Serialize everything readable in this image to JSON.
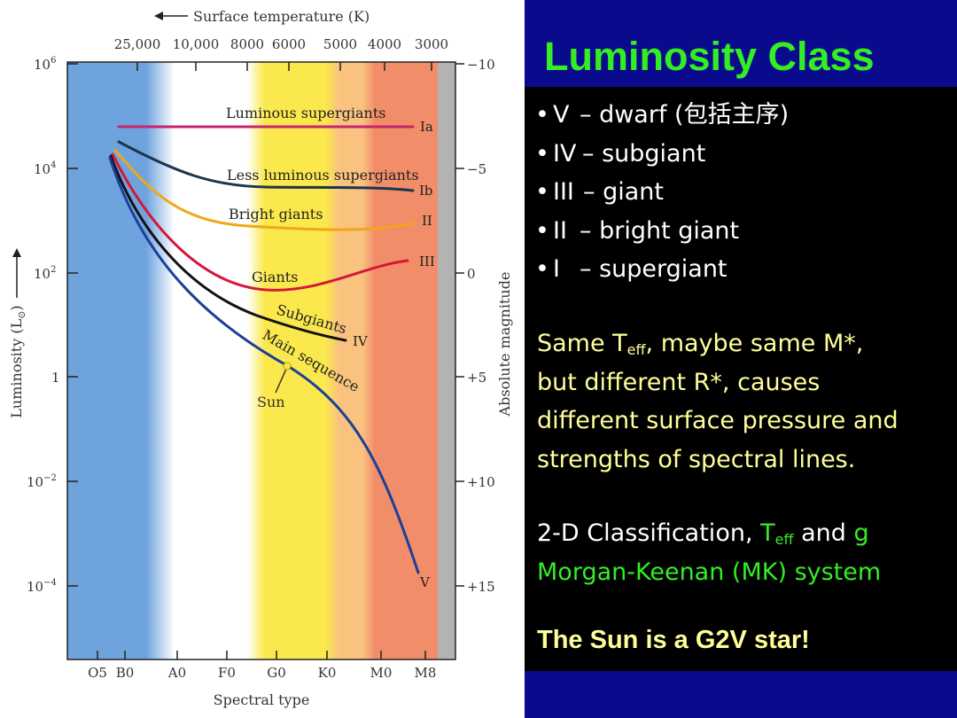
{
  "diagram": {
    "top_axis_label": "Surface temperature (K)",
    "temperature_ticks": [
      "25,000",
      "10,000",
      "8000",
      "6000",
      "5000",
      "4000",
      "3000"
    ],
    "left_axis_label": "Luminosity (L",
    "left_axis_sub": "⊙",
    "left_axis_close": ")",
    "right_axis_label": "Absolute magnitude",
    "bottom_axis_label": "Spectral type",
    "luminosity_ticks": [
      {
        "base": "10",
        "exp": "6"
      },
      {
        "base": "10",
        "exp": "4"
      },
      {
        "base": "10",
        "exp": "2"
      },
      {
        "base": "1",
        "exp": ""
      },
      {
        "base": "10",
        "exp": "−2"
      },
      {
        "base": "10",
        "exp": "−4"
      }
    ],
    "magnitude_ticks": [
      "−10",
      "−5",
      "0",
      "+5",
      "+10",
      "+15"
    ],
    "spectral_ticks": [
      "O5",
      "B0",
      "A0",
      "F0",
      "G0",
      "K0",
      "M0",
      "M8"
    ],
    "branches": [
      {
        "label": "Luminous supergiants",
        "class": "Ia",
        "color": "#c8246e"
      },
      {
        "label": "Less luminous supergiants",
        "class": "Ib",
        "color": "#1c3550"
      },
      {
        "label": "Bright giants",
        "class": "II",
        "color": "#f0a818"
      },
      {
        "label": "Giants",
        "class": "III",
        "color": "#d4183a"
      },
      {
        "label": "Subgiants",
        "class": "IV",
        "color": "#111111"
      },
      {
        "label": "Main sequence",
        "class": "V",
        "color": "#1b3f9a"
      }
    ],
    "sun_label": "Sun",
    "colors": {
      "band_blue": "#6fa3de",
      "band_yellow": "#fbe84c",
      "band_orange": "#f9b575",
      "band_red": "#f28d6a",
      "band_gray": "#b3b3b3"
    }
  },
  "panel": {
    "title": "Luminosity Class",
    "classes": [
      {
        "numeral": "V",
        "desc": "– dwarf (包括主序)"
      },
      {
        "numeral": "IV",
        "desc": "– subgiant"
      },
      {
        "numeral": "III",
        "desc": "– giant"
      },
      {
        "numeral": "II",
        "desc": "– bright giant"
      },
      {
        "numeral": "I",
        "desc": "– supergiant"
      }
    ],
    "bullet": "•",
    "para1": {
      "same": "Same T",
      "sub": "eff",
      "rest_line1": ", maybe same M*,",
      "line2": "but different R*, causes",
      "line3": "different surface pressure and",
      "line4": "strengths of spectral lines."
    },
    "para2": {
      "prefix": "2-D Classification, ",
      "teff": "T",
      "teff_sub": "eff",
      "and": " and ",
      "g": "g",
      "system": "Morgan-Keenan (MK) system"
    },
    "sun_note": "The Sun is a G2V star!",
    "colors": {
      "title": "#33ee22",
      "highlight": "#ffff99",
      "frame": "#0a0a8c"
    }
  }
}
